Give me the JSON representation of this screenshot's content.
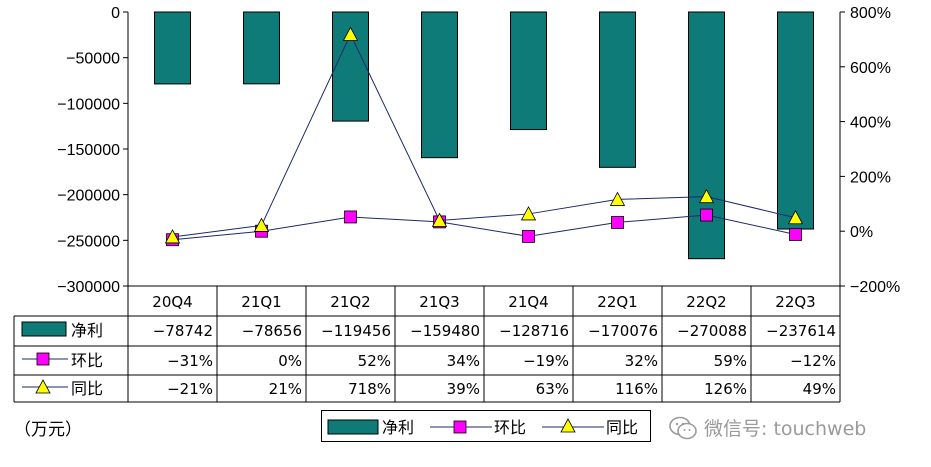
{
  "chart_data": {
    "type": "bar+line",
    "categories": [
      "20Q4",
      "21Q1",
      "21Q2",
      "21Q3",
      "21Q4",
      "22Q1",
      "22Q2",
      "22Q3"
    ],
    "series": [
      {
        "name": "净利",
        "type": "bar",
        "axis": "left",
        "color": "#0f7b78",
        "values": [
          -78742,
          -78656,
          -119456,
          -159480,
          -128716,
          -170076,
          -270088,
          -237614
        ],
        "labels": [
          "-78742",
          "-78656",
          "-119456",
          "-159480",
          "-128716",
          "-170076",
          "-270088",
          "-237614"
        ]
      },
      {
        "name": "环比",
        "type": "line",
        "axis": "right",
        "color": "#ff00ff",
        "marker": "square",
        "values": [
          -31,
          0,
          52,
          34,
          -19,
          32,
          59,
          -12
        ],
        "labels": [
          "-31%",
          "0%",
          "52%",
          "34%",
          "-19%",
          "32%",
          "59%",
          "-12%"
        ]
      },
      {
        "name": "同比",
        "type": "line",
        "axis": "right",
        "color": "#ffff00",
        "marker": "triangle",
        "values": [
          -21,
          21,
          718,
          39,
          63,
          116,
          126,
          49
        ],
        "labels": [
          "-21%",
          "21%",
          "718%",
          "39%",
          "63%",
          "116%",
          "126%",
          "49%"
        ]
      }
    ],
    "y_left": {
      "range": [
        -300000,
        0
      ],
      "ticks": [
        "0",
        "-50000",
        "-100000",
        "-150000",
        "-200000",
        "-250000",
        "-300000"
      ]
    },
    "y_right": {
      "range": [
        -200,
        800
      ],
      "ticks": [
        "800%",
        "600%",
        "400%",
        "200%",
        "0%",
        "-200%"
      ]
    },
    "grid": false,
    "legend": "bottom-center",
    "unit_label": "（万元）"
  },
  "watermark": {
    "text": "微信号: touchweb",
    "icon": "wechat-icon"
  }
}
